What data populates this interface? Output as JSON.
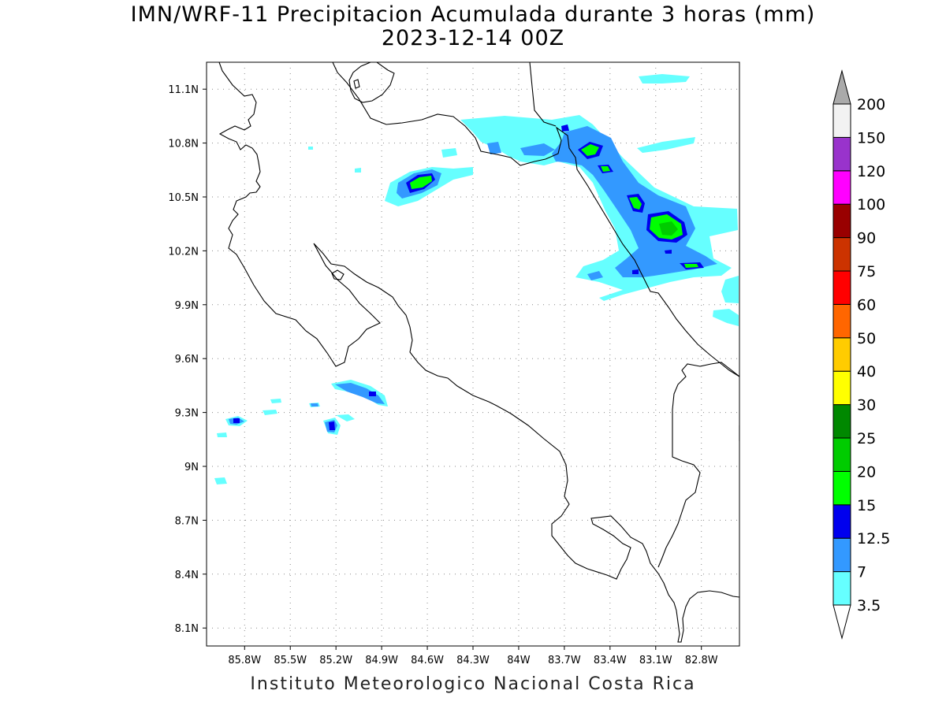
{
  "figure": {
    "title_line1": "IMN/WRF-11 Precipitacion Acumulada durante 3 horas (mm)",
    "title_line2": "2023-12-14 00Z",
    "footer": "Instituto Meteorologico Nacional Costa Rica"
  },
  "map": {
    "lon_range": [
      -86.05,
      -82.55
    ],
    "lat_range": [
      8.0,
      11.25
    ],
    "lon_ticks": [
      {
        "value": -85.8,
        "label": "85.8W"
      },
      {
        "value": -85.5,
        "label": "85.5W"
      },
      {
        "value": -85.2,
        "label": "85.2W"
      },
      {
        "value": -84.9,
        "label": "84.9W"
      },
      {
        "value": -84.6,
        "label": "84.6W"
      },
      {
        "value": -84.3,
        "label": "84.3W"
      },
      {
        "value": -84.0,
        "label": "84W"
      },
      {
        "value": -83.7,
        "label": "83.7W"
      },
      {
        "value": -83.4,
        "label": "83.4W"
      },
      {
        "value": -83.1,
        "label": "83.1W"
      },
      {
        "value": -82.8,
        "label": "82.8W"
      }
    ],
    "lat_ticks": [
      {
        "value": 11.1,
        "label": "11.1N"
      },
      {
        "value": 10.8,
        "label": "10.8N"
      },
      {
        "value": 10.5,
        "label": "10.5N"
      },
      {
        "value": 10.2,
        "label": "10.2N"
      },
      {
        "value": 9.9,
        "label": "9.9N"
      },
      {
        "value": 9.6,
        "label": "9.6N"
      },
      {
        "value": 9.3,
        "label": "9.3N"
      },
      {
        "value": 9.0,
        "label": "9N"
      },
      {
        "value": 8.7,
        "label": "8.7N"
      },
      {
        "value": 8.4,
        "label": "8.4N"
      },
      {
        "value": 8.1,
        "label": "8.1N"
      }
    ],
    "grid": "dotted"
  },
  "colorbar": {
    "levels": [
      {
        "label": "3.5",
        "color": "#ffffff"
      },
      {
        "label": "7",
        "color": "#66ffff"
      },
      {
        "label": "12.5",
        "color": "#3399ff"
      },
      {
        "label": "15",
        "color": "#0000ee"
      },
      {
        "label": "20",
        "color": "#00ff00"
      },
      {
        "label": "25",
        "color": "#00cc00"
      },
      {
        "label": "30",
        "color": "#008800"
      },
      {
        "label": "40",
        "color": "#ffff00"
      },
      {
        "label": "50",
        "color": "#ffcc00"
      },
      {
        "label": "60",
        "color": "#ff6600"
      },
      {
        "label": "75",
        "color": "#ff0000"
      },
      {
        "label": "90",
        "color": "#cc3300"
      },
      {
        "label": "100",
        "color": "#990000"
      },
      {
        "label": "120",
        "color": "#ff00ff"
      },
      {
        "label": "150",
        "color": "#9933cc"
      },
      {
        "label": "200",
        "color": "#f2f2f2"
      }
    ],
    "overflow_color": "#aaaaaa"
  }
}
